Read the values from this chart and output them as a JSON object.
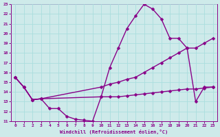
{
  "xlabel": "Windchill (Refroidissement éolien,°C)",
  "xlim": [
    -0.5,
    23.5
  ],
  "ylim": [
    11,
    23
  ],
  "xticks": [
    0,
    1,
    2,
    3,
    4,
    5,
    6,
    7,
    8,
    9,
    10,
    11,
    12,
    13,
    14,
    15,
    16,
    17,
    18,
    19,
    20,
    21,
    22,
    23
  ],
  "yticks": [
    11,
    12,
    13,
    14,
    15,
    16,
    17,
    18,
    19,
    20,
    21,
    22,
    23
  ],
  "bg_color": "#ceeaea",
  "line_color": "#880088",
  "grid_color": "#aadddd",
  "line1_x": [
    0,
    1,
    2,
    3,
    4,
    5,
    6,
    7,
    8,
    9,
    10,
    11,
    12,
    13,
    14,
    15,
    16,
    17,
    18,
    19,
    20,
    21,
    22,
    23
  ],
  "line1_y": [
    15.5,
    14.5,
    13.2,
    13.3,
    12.3,
    12.3,
    11.5,
    11.2,
    11.1,
    11.0,
    13.5,
    16.5,
    18.5,
    20.5,
    21.8,
    23.0,
    22.5,
    21.5,
    19.5,
    19.5,
    18.5,
    13.0,
    14.5,
    14.5
  ],
  "line2_x": [
    0,
    1,
    2,
    3,
    10,
    11,
    12,
    13,
    14,
    15,
    16,
    17,
    18,
    19,
    20,
    21,
    22,
    23
  ],
  "line2_y": [
    15.5,
    14.5,
    13.2,
    13.3,
    14.5,
    14.8,
    15.0,
    15.3,
    15.5,
    16.0,
    16.5,
    17.0,
    17.5,
    18.0,
    18.5,
    18.5,
    19.0,
    19.5
  ],
  "line3_x": [
    0,
    1,
    2,
    3,
    10,
    11,
    12,
    13,
    14,
    15,
    16,
    17,
    18,
    19,
    20,
    21,
    22,
    23
  ],
  "line3_y": [
    15.5,
    14.5,
    13.2,
    13.3,
    13.5,
    13.5,
    13.5,
    13.6,
    13.7,
    13.8,
    13.9,
    14.0,
    14.1,
    14.2,
    14.3,
    14.3,
    14.4,
    14.5
  ],
  "marker": "D",
  "markersize": 2.5,
  "linewidth": 1.0
}
